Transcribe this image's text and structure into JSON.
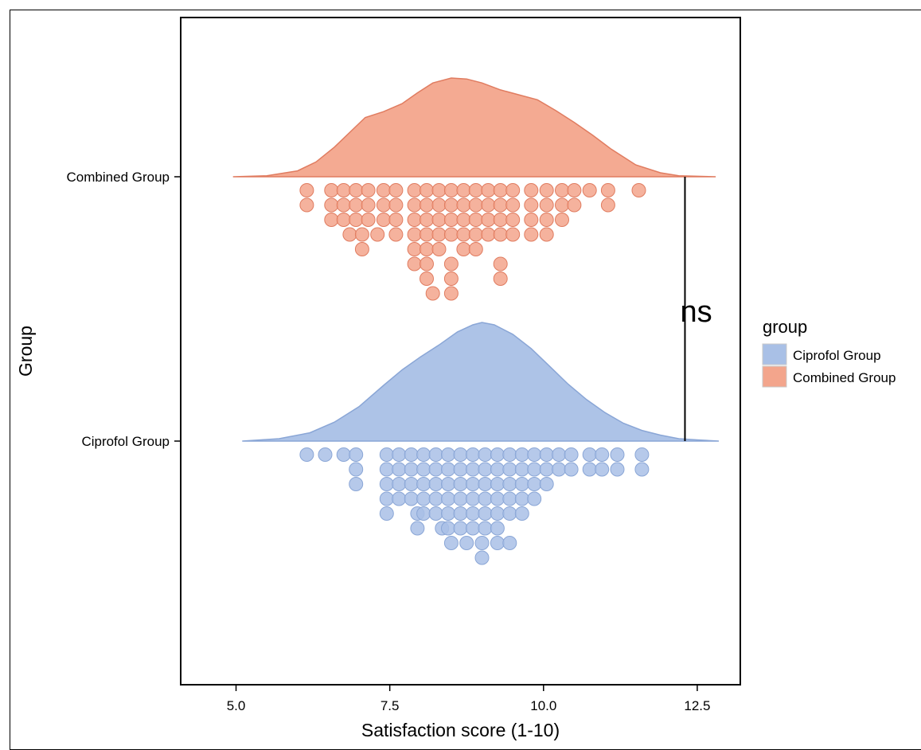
{
  "chart_data": {
    "type": "raincloud",
    "xlabel": "Satisfaction score (1-10)",
    "ylabel": "Group",
    "xlim": [
      4.1,
      13.2
    ],
    "xticks": [
      "5.0",
      "7.5",
      "10.0",
      "12.5"
    ],
    "xtick_values": [
      5.0,
      7.5,
      10.0,
      12.5
    ],
    "categories": [
      "Combined Group",
      "Ciprofol Group"
    ],
    "legend": {
      "title": "group",
      "position": "right",
      "entries": [
        {
          "label": "Ciprofol Group",
          "color": "#a9c0e6"
        },
        {
          "label": "Combined Group",
          "color": "#f3a58c"
        }
      ]
    },
    "annotation": {
      "text": "ns",
      "x": 12.3,
      "between": [
        "Combined Group",
        "Ciprofol Group"
      ]
    },
    "series": [
      {
        "name": "Combined Group",
        "color": "#f3a58c",
        "stroke": "#e07c60",
        "density": {
          "x": [
            4.95,
            5.5,
            6.0,
            6.3,
            6.6,
            6.9,
            7.1,
            7.4,
            7.7,
            7.95,
            8.2,
            8.5,
            8.75,
            9.0,
            9.3,
            9.6,
            9.9,
            10.2,
            10.5,
            10.8,
            11.1,
            11.5,
            11.9,
            12.2,
            12.8
          ],
          "y": [
            0.0,
            0.01,
            0.06,
            0.15,
            0.3,
            0.48,
            0.6,
            0.66,
            0.74,
            0.85,
            0.95,
            1.0,
            0.99,
            0.95,
            0.88,
            0.83,
            0.78,
            0.67,
            0.55,
            0.42,
            0.28,
            0.12,
            0.04,
            0.01,
            0.0
          ]
        },
        "dots": [
          [
            6.15,
            0
          ],
          [
            6.15,
            1
          ],
          [
            6.55,
            0
          ],
          [
            6.55,
            1
          ],
          [
            6.55,
            2
          ],
          [
            6.75,
            0
          ],
          [
            6.75,
            1
          ],
          [
            6.75,
            2
          ],
          [
            6.85,
            3
          ],
          [
            6.95,
            0
          ],
          [
            6.95,
            1
          ],
          [
            6.95,
            2
          ],
          [
            7.05,
            3
          ],
          [
            7.05,
            4
          ],
          [
            7.15,
            0
          ],
          [
            7.15,
            1
          ],
          [
            7.15,
            2
          ],
          [
            7.3,
            3
          ],
          [
            7.4,
            0
          ],
          [
            7.4,
            1
          ],
          [
            7.4,
            2
          ],
          [
            7.6,
            0
          ],
          [
            7.6,
            1
          ],
          [
            7.6,
            2
          ],
          [
            7.6,
            3
          ],
          [
            7.9,
            0
          ],
          [
            7.9,
            1
          ],
          [
            7.9,
            2
          ],
          [
            7.9,
            3
          ],
          [
            7.9,
            4
          ],
          [
            7.9,
            5
          ],
          [
            8.1,
            0
          ],
          [
            8.1,
            1
          ],
          [
            8.1,
            2
          ],
          [
            8.1,
            3
          ],
          [
            8.1,
            4
          ],
          [
            8.1,
            5
          ],
          [
            8.1,
            6
          ],
          [
            8.2,
            7
          ],
          [
            8.3,
            0
          ],
          [
            8.3,
            1
          ],
          [
            8.3,
            2
          ],
          [
            8.3,
            3
          ],
          [
            8.3,
            4
          ],
          [
            8.5,
            0
          ],
          [
            8.5,
            1
          ],
          [
            8.5,
            2
          ],
          [
            8.5,
            3
          ],
          [
            8.5,
            5
          ],
          [
            8.5,
            6
          ],
          [
            8.5,
            7
          ],
          [
            8.7,
            0
          ],
          [
            8.7,
            1
          ],
          [
            8.7,
            2
          ],
          [
            8.7,
            3
          ],
          [
            8.7,
            4
          ],
          [
            8.9,
            0
          ],
          [
            8.9,
            1
          ],
          [
            8.9,
            2
          ],
          [
            8.9,
            3
          ],
          [
            8.9,
            4
          ],
          [
            9.1,
            0
          ],
          [
            9.1,
            1
          ],
          [
            9.1,
            2
          ],
          [
            9.1,
            3
          ],
          [
            9.3,
            0
          ],
          [
            9.3,
            1
          ],
          [
            9.3,
            2
          ],
          [
            9.3,
            3
          ],
          [
            9.3,
            5
          ],
          [
            9.3,
            6
          ],
          [
            9.5,
            0
          ],
          [
            9.5,
            1
          ],
          [
            9.5,
            2
          ],
          [
            9.5,
            3
          ],
          [
            9.8,
            0
          ],
          [
            9.8,
            1
          ],
          [
            9.8,
            2
          ],
          [
            9.8,
            3
          ],
          [
            10.05,
            0
          ],
          [
            10.05,
            1
          ],
          [
            10.05,
            2
          ],
          [
            10.05,
            3
          ],
          [
            10.3,
            0
          ],
          [
            10.3,
            1
          ],
          [
            10.3,
            2
          ],
          [
            10.5,
            0
          ],
          [
            10.5,
            1
          ],
          [
            10.75,
            0
          ],
          [
            11.05,
            0
          ],
          [
            11.05,
            1
          ],
          [
            11.55,
            0
          ]
        ]
      },
      {
        "name": "Ciprofol Group",
        "color": "#a9c0e6",
        "stroke": "#8aa6d6",
        "density": {
          "x": [
            5.1,
            5.7,
            6.2,
            6.6,
            7.0,
            7.4,
            7.7,
            8.0,
            8.3,
            8.6,
            8.85,
            9.0,
            9.2,
            9.5,
            9.8,
            10.1,
            10.4,
            10.7,
            11.0,
            11.3,
            11.6,
            11.9,
            12.2,
            12.5,
            12.85
          ],
          "y": [
            0.0,
            0.02,
            0.07,
            0.16,
            0.29,
            0.47,
            0.6,
            0.71,
            0.81,
            0.92,
            0.98,
            1.0,
            0.98,
            0.9,
            0.78,
            0.63,
            0.48,
            0.35,
            0.24,
            0.15,
            0.09,
            0.05,
            0.02,
            0.01,
            0.0
          ]
        },
        "dots": [
          [
            6.15,
            0
          ],
          [
            6.45,
            0
          ],
          [
            6.75,
            0
          ],
          [
            6.95,
            0
          ],
          [
            6.95,
            1
          ],
          [
            6.95,
            2
          ],
          [
            7.45,
            0
          ],
          [
            7.45,
            1
          ],
          [
            7.45,
            2
          ],
          [
            7.45,
            3
          ],
          [
            7.45,
            4
          ],
          [
            7.65,
            0
          ],
          [
            7.65,
            1
          ],
          [
            7.65,
            2
          ],
          [
            7.65,
            3
          ],
          [
            7.85,
            0
          ],
          [
            7.85,
            1
          ],
          [
            7.85,
            2
          ],
          [
            7.85,
            3
          ],
          [
            7.95,
            4
          ],
          [
            7.95,
            5
          ],
          [
            8.05,
            0
          ],
          [
            8.05,
            1
          ],
          [
            8.05,
            2
          ],
          [
            8.05,
            3
          ],
          [
            8.05,
            4
          ],
          [
            8.25,
            0
          ],
          [
            8.25,
            1
          ],
          [
            8.25,
            2
          ],
          [
            8.25,
            3
          ],
          [
            8.25,
            4
          ],
          [
            8.35,
            5
          ],
          [
            8.45,
            0
          ],
          [
            8.45,
            1
          ],
          [
            8.45,
            2
          ],
          [
            8.45,
            3
          ],
          [
            8.45,
            4
          ],
          [
            8.45,
            5
          ],
          [
            8.5,
            6
          ],
          [
            8.65,
            0
          ],
          [
            8.65,
            1
          ],
          [
            8.65,
            2
          ],
          [
            8.65,
            3
          ],
          [
            8.65,
            4
          ],
          [
            8.65,
            5
          ],
          [
            8.75,
            6
          ],
          [
            8.85,
            0
          ],
          [
            8.85,
            1
          ],
          [
            8.85,
            2
          ],
          [
            8.85,
            3
          ],
          [
            8.85,
            4
          ],
          [
            8.85,
            5
          ],
          [
            9.0,
            6
          ],
          [
            9.0,
            7
          ],
          [
            9.05,
            0
          ],
          [
            9.05,
            1
          ],
          [
            9.05,
            2
          ],
          [
            9.05,
            3
          ],
          [
            9.05,
            4
          ],
          [
            9.05,
            5
          ],
          [
            9.25,
            0
          ],
          [
            9.25,
            1
          ],
          [
            9.25,
            2
          ],
          [
            9.25,
            3
          ],
          [
            9.25,
            4
          ],
          [
            9.25,
            5
          ],
          [
            9.25,
            6
          ],
          [
            9.45,
            0
          ],
          [
            9.45,
            1
          ],
          [
            9.45,
            2
          ],
          [
            9.45,
            3
          ],
          [
            9.45,
            4
          ],
          [
            9.45,
            6
          ],
          [
            9.65,
            0
          ],
          [
            9.65,
            1
          ],
          [
            9.65,
            2
          ],
          [
            9.65,
            3
          ],
          [
            9.65,
            4
          ],
          [
            9.85,
            0
          ],
          [
            9.85,
            1
          ],
          [
            9.85,
            2
          ],
          [
            9.85,
            3
          ],
          [
            10.05,
            0
          ],
          [
            10.05,
            1
          ],
          [
            10.05,
            2
          ],
          [
            10.25,
            0
          ],
          [
            10.25,
            1
          ],
          [
            10.45,
            0
          ],
          [
            10.45,
            1
          ],
          [
            10.75,
            0
          ],
          [
            10.75,
            1
          ],
          [
            10.95,
            0
          ],
          [
            10.95,
            1
          ],
          [
            11.2,
            0
          ],
          [
            11.2,
            1
          ],
          [
            11.6,
            0
          ],
          [
            11.6,
            1
          ]
        ]
      }
    ]
  }
}
